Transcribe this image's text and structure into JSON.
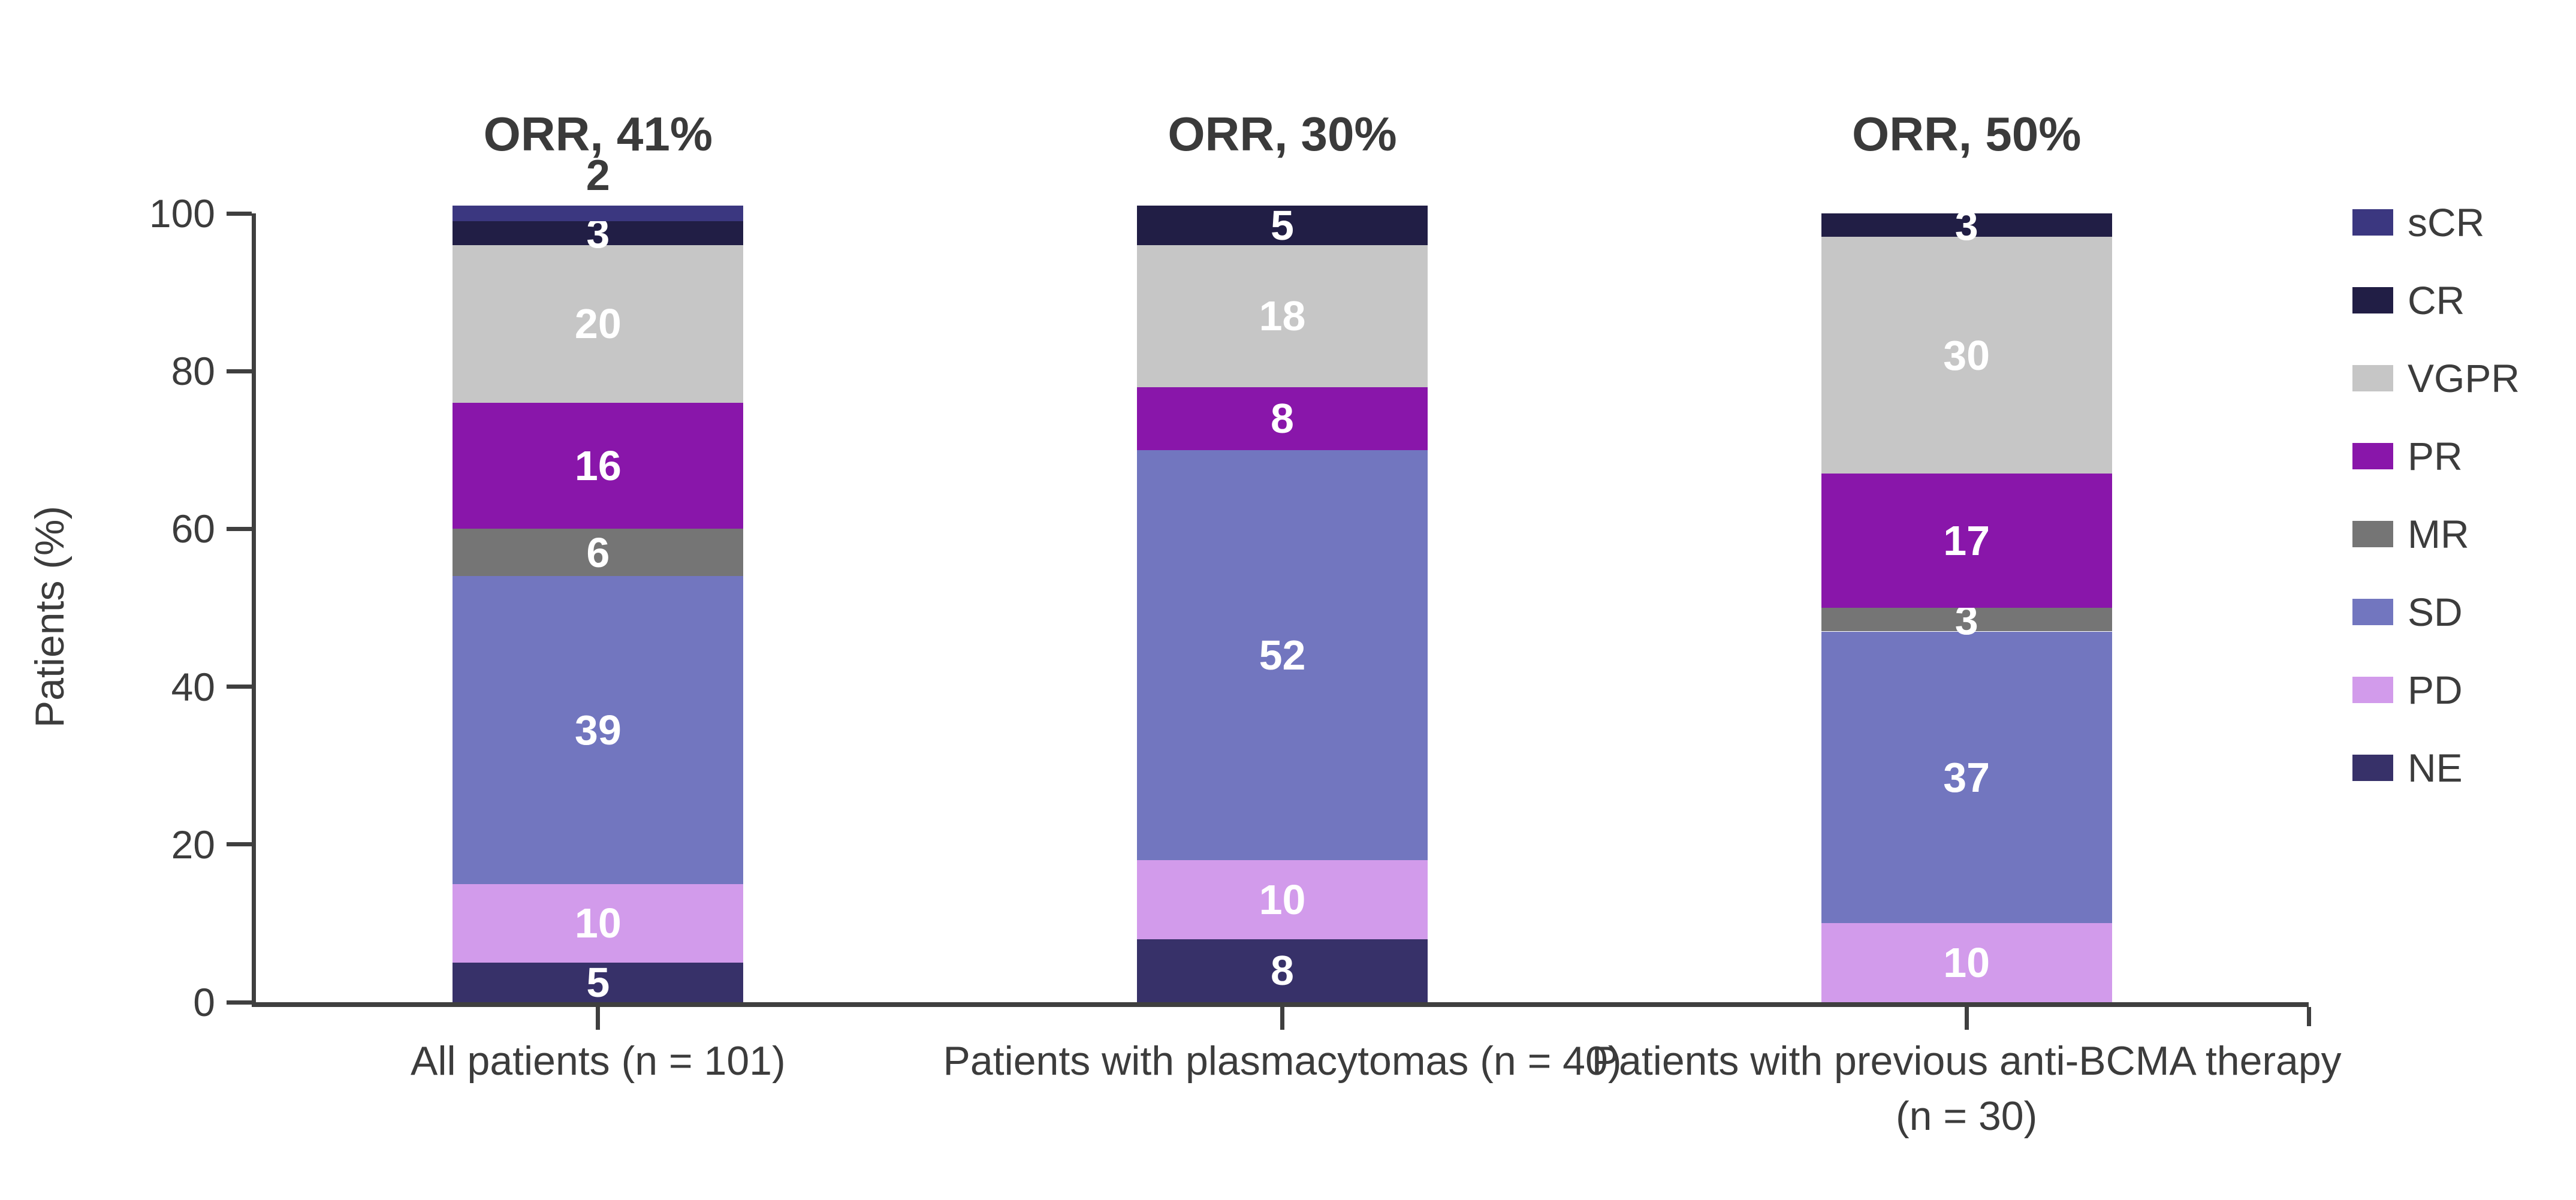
{
  "chart_data": {
    "type": "bar",
    "stacked": true,
    "ylabel": "Patients (%)",
    "ylim": [
      0,
      100
    ],
    "yticks": [
      0,
      20,
      40,
      60,
      80,
      100
    ],
    "grid": false,
    "legend_position": "right",
    "colors": {
      "sCR": "#3B3780",
      "CR": "#211E45",
      "VGPR": "#C6C6C6",
      "PR": "#8916AA",
      "MR": "#757575",
      "SD": "#7276BF",
      "PD": "#D29BEB",
      "NE": "#373169",
      "axis": "#3F3F3F",
      "text": "#3C3C3C"
    },
    "legend": [
      {
        "label": "sCR"
      },
      {
        "label": "CR"
      },
      {
        "label": "VGPR"
      },
      {
        "label": "PR"
      },
      {
        "label": "MR"
      },
      {
        "label": "SD"
      },
      {
        "label": "PD"
      },
      {
        "label": "NE"
      }
    ],
    "categories": [
      "All patients (n = 101)",
      "Patients with plasmacytomas (n = 40)",
      "Patients with previous anti-BCMA therapy\n(n = 30)"
    ],
    "orr_labels": [
      "ORR, 41%",
      "ORR, 30%",
      "ORR, 50%"
    ],
    "bars": [
      {
        "category": "All patients (n = 101)",
        "orr": "ORR, 41%",
        "segments_bottom_up": [
          {
            "name": "NE",
            "value": 5
          },
          {
            "name": "PD",
            "value": 10
          },
          {
            "name": "SD",
            "value": 39
          },
          {
            "name": "MR",
            "value": 6
          },
          {
            "name": "PR",
            "value": 16
          },
          {
            "name": "VGPR",
            "value": 20
          },
          {
            "name": "CR",
            "value": 3
          },
          {
            "name": "sCR",
            "value": 2,
            "label_outside": true
          }
        ]
      },
      {
        "category": "Patients with plasmacytomas (n = 40)",
        "orr": "ORR, 30%",
        "segments_bottom_up": [
          {
            "name": "NE",
            "value": 8
          },
          {
            "name": "PD",
            "value": 10
          },
          {
            "name": "SD",
            "value": 52
          },
          {
            "name": "PR",
            "value": 8
          },
          {
            "name": "VGPR",
            "value": 18
          },
          {
            "name": "CR",
            "value": 5
          }
        ]
      },
      {
        "category": "Patients with previous anti-BCMA therapy\n(n = 30)",
        "orr": "ORR, 50%",
        "segments_bottom_up": [
          {
            "name": "PD",
            "value": 10
          },
          {
            "name": "SD",
            "value": 37
          },
          {
            "name": "MR",
            "value": 3
          },
          {
            "name": "PR",
            "value": 17
          },
          {
            "name": "VGPR",
            "value": 30
          },
          {
            "name": "CR",
            "value": 3
          }
        ]
      }
    ]
  }
}
